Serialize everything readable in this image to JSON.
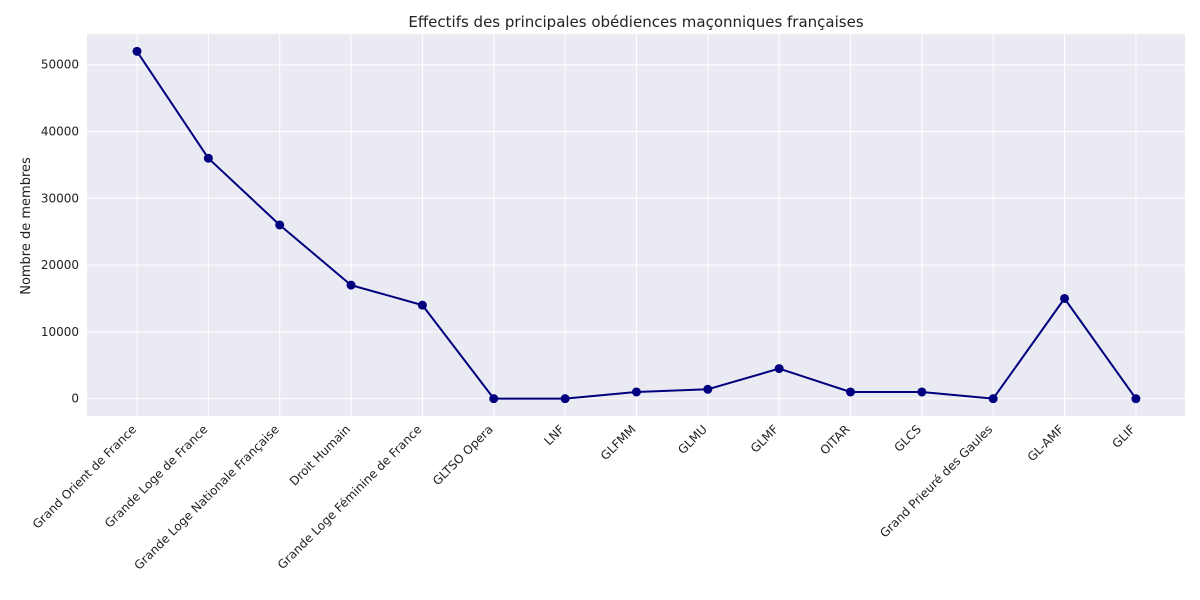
{
  "chart_data": {
    "type": "line",
    "title": "Effectifs des principales obédiences maçonniques françaises",
    "xlabel": "",
    "ylabel": "Nombre de membres",
    "categories": [
      "Grand Orient de France",
      "Grande Loge de France",
      "Grande Loge Nationale Française",
      "Droit Humain",
      "Grande Loge Féminine de France",
      "GLTSO Opera",
      "LNF",
      "GLFMM",
      "GLMU",
      "GLMF",
      "OITAR",
      "GLCS",
      "Grand Prieuré des Gaules",
      "GL-AMF",
      "GLIF"
    ],
    "values": [
      52000,
      36000,
      26000,
      17000,
      14000,
      0,
      0,
      1000,
      1400,
      4500,
      1000,
      1000,
      0,
      15000,
      0
    ],
    "ylim": [
      -2600,
      54600
    ],
    "yticks": [
      0,
      10000,
      20000,
      30000,
      40000,
      50000
    ],
    "grid": true,
    "legend": "none",
    "colors": {
      "line": "#00007f",
      "marker": "#00007f",
      "plot_background": "#eaeaf2",
      "grid": "#ffffff"
    }
  }
}
